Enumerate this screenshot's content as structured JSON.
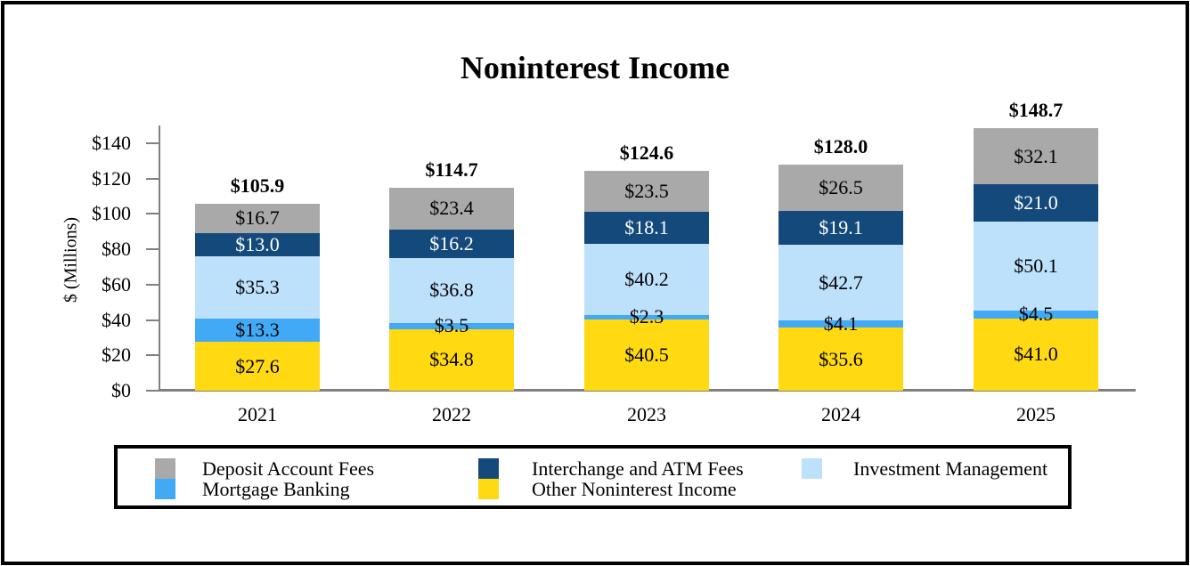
{
  "chart_data": {
    "type": "bar",
    "stacked": true,
    "title": "Noninterest Income",
    "ylabel": "$ (Millions)",
    "xlabel": "",
    "ylim": [
      0,
      150
    ],
    "grid": false,
    "legend_position": "bottom-box",
    "categories": [
      "2021",
      "2022",
      "2023",
      "2024",
      "2025"
    ],
    "series": [
      {
        "key": "other-noninterest-income",
        "name": "Other Noninterest Income",
        "color": "#FFD912",
        "text_color": "#000000",
        "values": [
          27.6,
          34.8,
          40.5,
          35.6,
          41.0
        ],
        "labels": [
          "$27.6",
          "$34.8",
          "$40.5",
          "$35.6",
          "$41.0"
        ]
      },
      {
        "key": "mortgage-banking",
        "name": "Mortgage Banking",
        "color": "#41A9F5",
        "text_color": "#000000",
        "values": [
          13.3,
          3.5,
          2.3,
          4.1,
          4.5
        ],
        "labels": [
          "$13.3",
          "$3.5",
          "$2.3",
          "$4.1",
          "$4.5"
        ]
      },
      {
        "key": "investment-management",
        "name": "Investment Management",
        "color": "#BDE0FB",
        "text_color": "#000000",
        "values": [
          35.3,
          36.8,
          40.2,
          42.7,
          50.1
        ],
        "labels": [
          "$35.3",
          "$36.8",
          "$40.2",
          "$42.7",
          "$50.1"
        ]
      },
      {
        "key": "interchange-atm-fees",
        "name": "Interchange and ATM Fees",
        "color": "#14497C",
        "text_color": "#FFFFFF",
        "values": [
          13.0,
          16.2,
          18.1,
          19.1,
          21.0
        ],
        "labels": [
          "$13.0",
          "$16.2",
          "$18.1",
          "$19.1",
          "$21.0"
        ]
      },
      {
        "key": "deposit-account-fees",
        "name": "Deposit Account Fees",
        "color": "#A9A9A9",
        "text_color": "#000000",
        "values": [
          16.7,
          23.4,
          23.5,
          26.5,
          32.1
        ],
        "labels": [
          "$16.7",
          "$23.4",
          "$23.5",
          "$26.5",
          "$32.1"
        ]
      }
    ],
    "totals": [
      105.9,
      114.7,
      124.6,
      128.0,
      148.7
    ],
    "total_labels": [
      "$105.9",
      "$114.7",
      "$124.6",
      "$128.0",
      "$148.7"
    ],
    "yticks": [
      {
        "value": 0,
        "label": "$0"
      },
      {
        "value": 20,
        "label": "$20"
      },
      {
        "value": 40,
        "label": "$40"
      },
      {
        "value": 60,
        "label": "$60"
      },
      {
        "value": 80,
        "label": "$80"
      },
      {
        "value": 100,
        "label": "$100"
      },
      {
        "value": 120,
        "label": "$120"
      },
      {
        "value": 140,
        "label": "$140"
      }
    ]
  },
  "legend": {
    "items": [
      {
        "key": "deposit-account-fees",
        "label": "Deposit Account Fees",
        "color": "#A9A9A9"
      },
      {
        "key": "interchange-atm-fees",
        "label": "Interchange and ATM Fees",
        "color": "#14497C"
      },
      {
        "key": "investment-management",
        "label": "Investment Management",
        "color": "#BDE0FB"
      },
      {
        "key": "mortgage-banking",
        "label": "Mortgage Banking",
        "color": "#41A9F5"
      },
      {
        "key": "other-noninterest-income",
        "label": "Other Noninterest Income",
        "color": "#FFD912"
      }
    ]
  },
  "colors": {
    "axis": "#808080",
    "baseline": "#7F7F7F",
    "frame": "#000000",
    "background": "#FFFFFF"
  }
}
